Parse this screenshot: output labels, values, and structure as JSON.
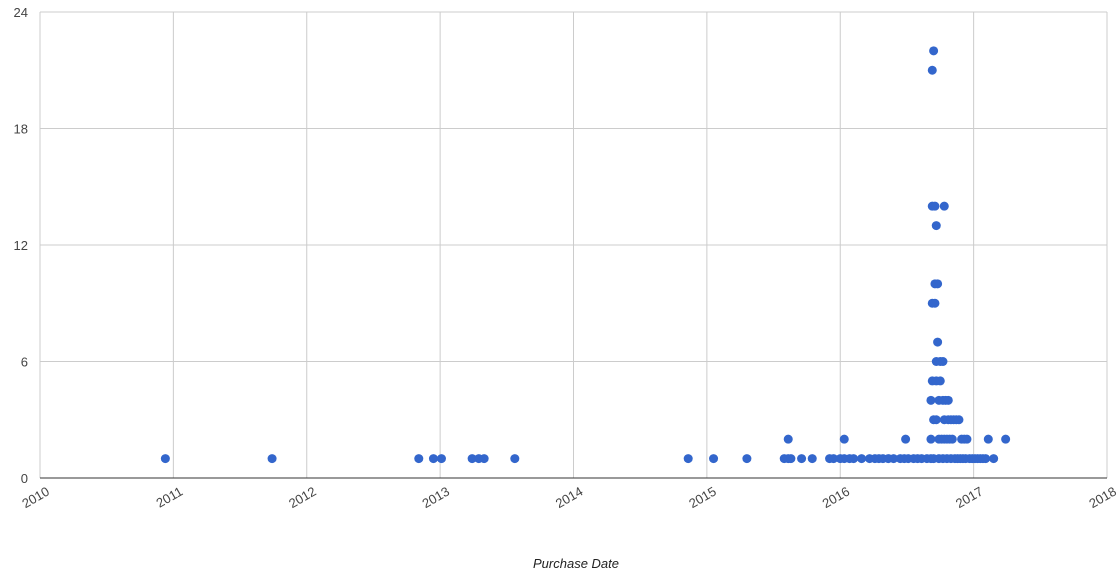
{
  "chart_data": {
    "type": "scatter",
    "title": "",
    "xlabel": "Purchase Date",
    "ylabel": "",
    "xlim": [
      2010,
      2018
    ],
    "ylim": [
      0,
      24
    ],
    "x_ticks": [
      "2010",
      "2011",
      "2012",
      "2013",
      "2014",
      "2015",
      "2016",
      "2017",
      "2018"
    ],
    "y_ticks": [
      "0",
      "6",
      "12",
      "18",
      "24"
    ],
    "grid": true,
    "legend": "none",
    "series": [
      {
        "color": "#3366cc",
        "points": [
          [
            2010.94,
            1
          ],
          [
            2011.74,
            1
          ],
          [
            2012.84,
            1
          ],
          [
            2012.95,
            1
          ],
          [
            2013.01,
            1
          ],
          [
            2013.24,
            1
          ],
          [
            2013.29,
            1
          ],
          [
            2013.33,
            1
          ],
          [
            2013.56,
            1
          ],
          [
            2014.86,
            1
          ],
          [
            2015.05,
            1
          ],
          [
            2015.3,
            1
          ],
          [
            2015.58,
            1
          ],
          [
            2015.61,
            1
          ],
          [
            2015.63,
            1
          ],
          [
            2015.61,
            2
          ],
          [
            2015.71,
            1
          ],
          [
            2015.79,
            1
          ],
          [
            2015.92,
            1
          ],
          [
            2015.95,
            1
          ],
          [
            2016.0,
            1
          ],
          [
            2016.03,
            1
          ],
          [
            2016.03,
            2
          ],
          [
            2016.07,
            1
          ],
          [
            2016.1,
            1
          ],
          [
            2016.16,
            1
          ],
          [
            2016.22,
            1
          ],
          [
            2016.26,
            1
          ],
          [
            2016.29,
            1
          ],
          [
            2016.32,
            1
          ],
          [
            2016.36,
            1
          ],
          [
            2016.4,
            1
          ],
          [
            2016.45,
            1
          ],
          [
            2016.48,
            1
          ],
          [
            2016.49,
            2
          ],
          [
            2016.51,
            1
          ],
          [
            2016.55,
            1
          ],
          [
            2016.58,
            1
          ],
          [
            2016.61,
            1
          ],
          [
            2016.65,
            1
          ],
          [
            2016.68,
            1
          ],
          [
            2016.68,
            2
          ],
          [
            2016.68,
            4
          ],
          [
            2016.69,
            5
          ],
          [
            2016.69,
            9
          ],
          [
            2016.69,
            14
          ],
          [
            2016.69,
            21
          ],
          [
            2016.7,
            22
          ],
          [
            2016.7,
            1
          ],
          [
            2016.7,
            3
          ],
          [
            2016.71,
            14
          ],
          [
            2016.71,
            9
          ],
          [
            2016.71,
            10
          ],
          [
            2016.72,
            3
          ],
          [
            2016.72,
            5
          ],
          [
            2016.72,
            6
          ],
          [
            2016.72,
            13
          ],
          [
            2016.73,
            10
          ],
          [
            2016.73,
            7
          ],
          [
            2016.74,
            1
          ],
          [
            2016.74,
            4
          ],
          [
            2016.74,
            2
          ],
          [
            2016.75,
            5
          ],
          [
            2016.75,
            6
          ],
          [
            2016.76,
            2
          ],
          [
            2016.77,
            4
          ],
          [
            2016.77,
            6
          ],
          [
            2016.77,
            1
          ],
          [
            2016.78,
            14
          ],
          [
            2016.78,
            2
          ],
          [
            2016.78,
            3
          ],
          [
            2016.79,
            4
          ],
          [
            2016.8,
            2
          ],
          [
            2016.8,
            1
          ],
          [
            2016.81,
            3
          ],
          [
            2016.81,
            4
          ],
          [
            2016.82,
            2
          ],
          [
            2016.83,
            1
          ],
          [
            2016.83,
            3
          ],
          [
            2016.84,
            2
          ],
          [
            2016.85,
            3
          ],
          [
            2016.86,
            1
          ],
          [
            2016.87,
            3
          ],
          [
            2016.88,
            1
          ],
          [
            2016.89,
            3
          ],
          [
            2016.9,
            1
          ],
          [
            2016.91,
            2
          ],
          [
            2016.92,
            1
          ],
          [
            2016.93,
            2
          ],
          [
            2016.94,
            1
          ],
          [
            2016.95,
            2
          ],
          [
            2016.97,
            1
          ],
          [
            2016.99,
            1
          ],
          [
            2017.01,
            1
          ],
          [
            2017.03,
            1
          ],
          [
            2017.05,
            1
          ],
          [
            2017.07,
            1
          ],
          [
            2017.09,
            1
          ],
          [
            2017.11,
            2
          ],
          [
            2017.15,
            1
          ],
          [
            2017.24,
            2
          ]
        ]
      }
    ]
  }
}
